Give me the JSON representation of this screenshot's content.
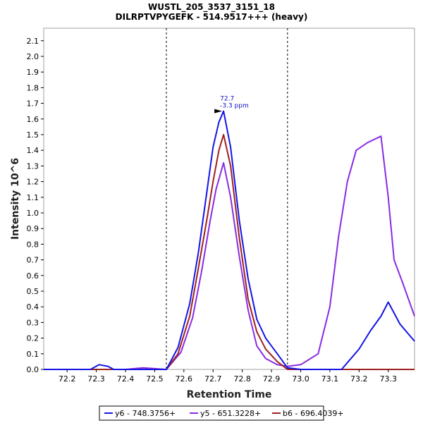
{
  "chart_data": {
    "type": "line",
    "title": "WUSTL_205_3537_3151_18",
    "subtitle": "DILRPTVPYGEFK - 514.9517+++ (heavy)",
    "xlabel": "Retention Time",
    "ylabel": "Intensity 10^6",
    "xlim": [
      72.12,
      73.39
    ],
    "ylim": [
      0,
      2.18
    ],
    "xticks": [
      "72.2",
      "72.3",
      "72.4",
      "72.5",
      "72.6",
      "72.7",
      "72.8",
      "72.9",
      "73.0",
      "73.1",
      "73.2",
      "73.3"
    ],
    "yticks": [
      "0.0",
      "0.1",
      "0.2",
      "0.3",
      "0.4",
      "0.5",
      "0.6",
      "0.7",
      "0.8",
      "0.9",
      "1.0",
      "1.1",
      "1.2",
      "1.3",
      "1.4",
      "1.5",
      "1.6",
      "1.7",
      "1.8",
      "1.9",
      "2.0",
      "2.1"
    ],
    "grid": false,
    "legend_position": "bottom",
    "boundaries": [
      72.54,
      72.955
    ],
    "annotation": {
      "x": 72.736,
      "y": 1.65,
      "rt_label": "72.7",
      "ppm_label": "-3.3 ppm"
    },
    "series": [
      {
        "name": "y6 - 748.3756+",
        "color": "#1414e6",
        "x": [
          72.12,
          72.28,
          72.31,
          72.34,
          72.36,
          72.42,
          72.54,
          72.58,
          72.62,
          72.65,
          72.68,
          72.7,
          72.72,
          72.736,
          72.76,
          72.79,
          72.82,
          72.85,
          72.88,
          72.92,
          72.955,
          73.0,
          73.14,
          73.2,
          73.24,
          73.275,
          73.3,
          73.34,
          73.39
        ],
        "y": [
          0,
          0,
          0.03,
          0.02,
          0.0,
          0.0,
          0.0,
          0.14,
          0.42,
          0.75,
          1.15,
          1.42,
          1.58,
          1.65,
          1.42,
          0.95,
          0.58,
          0.32,
          0.2,
          0.1,
          0.01,
          0.0,
          0.0,
          0.13,
          0.25,
          0.34,
          0.43,
          0.29,
          0.18
        ]
      },
      {
        "name": "y5 - 651.3228+",
        "color": "#8a2be2",
        "x": [
          72.12,
          72.4,
          72.46,
          72.54,
          72.59,
          72.63,
          72.66,
          72.69,
          72.71,
          72.736,
          72.76,
          72.79,
          72.82,
          72.85,
          72.88,
          72.92,
          72.955,
          73.0,
          73.06,
          73.1,
          73.13,
          73.16,
          73.19,
          73.23,
          73.275,
          73.3,
          73.32,
          73.35,
          73.39
        ],
        "y": [
          0,
          0,
          0.01,
          0.0,
          0.11,
          0.33,
          0.62,
          0.95,
          1.15,
          1.32,
          1.1,
          0.72,
          0.38,
          0.15,
          0.07,
          0.03,
          0.02,
          0.03,
          0.1,
          0.4,
          0.85,
          1.2,
          1.4,
          1.45,
          1.49,
          1.1,
          0.7,
          0.55,
          0.34
        ]
      },
      {
        "name": "b6 - 696.4039+",
        "color": "#a0201e",
        "x": [
          72.12,
          72.54,
          72.58,
          72.62,
          72.65,
          72.68,
          72.7,
          72.72,
          72.736,
          72.76,
          72.79,
          72.82,
          72.85,
          72.88,
          72.92,
          72.955,
          73.39
        ],
        "y": [
          0,
          0,
          0.1,
          0.34,
          0.65,
          0.97,
          1.2,
          1.4,
          1.5,
          1.3,
          0.84,
          0.45,
          0.24,
          0.13,
          0.05,
          0.0,
          0.0
        ]
      }
    ]
  }
}
